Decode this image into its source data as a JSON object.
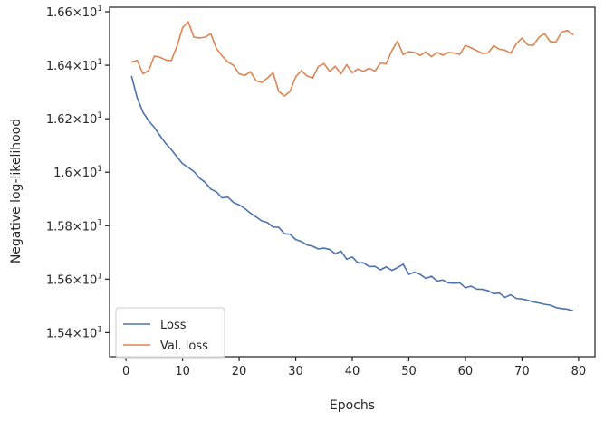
{
  "chart_data": {
    "type": "line",
    "title": "",
    "xlabel": "Epochs",
    "ylabel": "Negative log-likelihood",
    "xlim": [
      -2.9,
      82.9
    ],
    "ylim": [
      15.31,
      16.617
    ],
    "xticks": [
      0,
      10,
      20,
      30,
      40,
      50,
      60,
      70,
      80
    ],
    "xtick_labels": [
      "0",
      "10",
      "20",
      "30",
      "40",
      "50",
      "60",
      "70",
      "80"
    ],
    "yticks": [
      15.4,
      15.6,
      15.8,
      16.0,
      16.2,
      16.4,
      16.6
    ],
    "ytick_labels": [
      {
        "base": "1.54",
        "exp": "1"
      },
      {
        "base": "1.56",
        "exp": "1"
      },
      {
        "base": "1.58",
        "exp": "1"
      },
      {
        "base": "1.6",
        "exp": "1"
      },
      {
        "base": "1.62",
        "exp": "1"
      },
      {
        "base": "1.64",
        "exp": "1"
      },
      {
        "base": "1.66",
        "exp": "1"
      }
    ],
    "grid": false,
    "legend_position": "lower-left",
    "series": [
      {
        "name": "Loss",
        "color": "#4c72b0",
        "x": [
          1,
          2,
          3,
          4,
          5,
          6,
          7,
          8,
          9,
          10,
          11,
          12,
          13,
          14,
          15,
          16,
          17,
          18,
          19,
          20,
          21,
          22,
          23,
          24,
          25,
          26,
          27,
          28,
          29,
          30,
          31,
          32,
          33,
          34,
          35,
          36,
          37,
          38,
          39,
          40,
          41,
          42,
          43,
          44,
          45,
          46,
          47,
          48,
          49,
          50,
          51,
          52,
          53,
          54,
          55,
          56,
          57,
          58,
          59,
          60,
          61,
          62,
          63,
          64,
          65,
          66,
          67,
          68,
          69,
          70,
          71,
          72,
          73,
          74,
          75,
          76,
          77,
          78,
          79
        ],
        "values": [
          16.358,
          16.277,
          16.225,
          16.192,
          16.168,
          16.137,
          16.108,
          16.085,
          16.058,
          16.032,
          16.018,
          16.003,
          15.978,
          15.962,
          15.937,
          15.926,
          15.904,
          15.907,
          15.887,
          15.878,
          15.864,
          15.847,
          15.833,
          15.818,
          15.812,
          15.795,
          15.794,
          15.77,
          15.768,
          15.748,
          15.741,
          15.728,
          15.723,
          15.713,
          15.716,
          15.711,
          15.695,
          15.705,
          15.675,
          15.683,
          15.661,
          15.661,
          15.647,
          15.648,
          15.635,
          15.646,
          15.633,
          15.643,
          15.656,
          15.618,
          15.626,
          15.618,
          15.603,
          15.611,
          15.593,
          15.597,
          15.586,
          15.585,
          15.586,
          15.568,
          15.574,
          15.563,
          15.562,
          15.557,
          15.546,
          15.548,
          15.532,
          15.542,
          15.528,
          15.526,
          15.521,
          15.515,
          15.511,
          15.506,
          15.503,
          15.494,
          15.49,
          15.488,
          15.482
        ]
      },
      {
        "name": "Val. loss",
        "color": "#dd8452",
        "x": [
          1,
          2,
          3,
          4,
          5,
          6,
          7,
          8,
          9,
          10,
          11,
          12,
          13,
          14,
          15,
          16,
          17,
          18,
          19,
          20,
          21,
          22,
          23,
          24,
          25,
          26,
          27,
          28,
          29,
          30,
          31,
          32,
          33,
          34,
          35,
          36,
          37,
          38,
          39,
          40,
          41,
          42,
          43,
          44,
          45,
          46,
          47,
          48,
          49,
          50,
          51,
          52,
          53,
          54,
          55,
          56,
          57,
          58,
          59,
          60,
          61,
          62,
          63,
          64,
          65,
          66,
          67,
          68,
          69,
          70,
          71,
          72,
          73,
          74,
          75,
          76,
          77,
          78,
          79
        ],
        "values": [
          16.412,
          16.418,
          16.368,
          16.38,
          16.434,
          16.43,
          16.42,
          16.417,
          16.47,
          16.54,
          16.563,
          16.505,
          16.502,
          16.505,
          16.518,
          16.462,
          16.435,
          16.412,
          16.4,
          16.368,
          16.362,
          16.376,
          16.342,
          16.336,
          16.352,
          16.372,
          16.302,
          16.285,
          16.302,
          16.357,
          16.38,
          16.36,
          16.352,
          16.395,
          16.406,
          16.377,
          16.396,
          16.368,
          16.402,
          16.372,
          16.386,
          16.377,
          16.389,
          16.378,
          16.409,
          16.405,
          16.455,
          16.49,
          16.44,
          16.451,
          16.448,
          16.437,
          16.45,
          16.432,
          16.448,
          16.438,
          16.448,
          16.446,
          16.441,
          16.474,
          16.465,
          16.455,
          16.444,
          16.446,
          16.473,
          16.46,
          16.456,
          16.445,
          16.48,
          16.502,
          16.476,
          16.474,
          16.505,
          16.518,
          16.488,
          16.487,
          16.524,
          16.53,
          16.515
        ]
      }
    ]
  }
}
